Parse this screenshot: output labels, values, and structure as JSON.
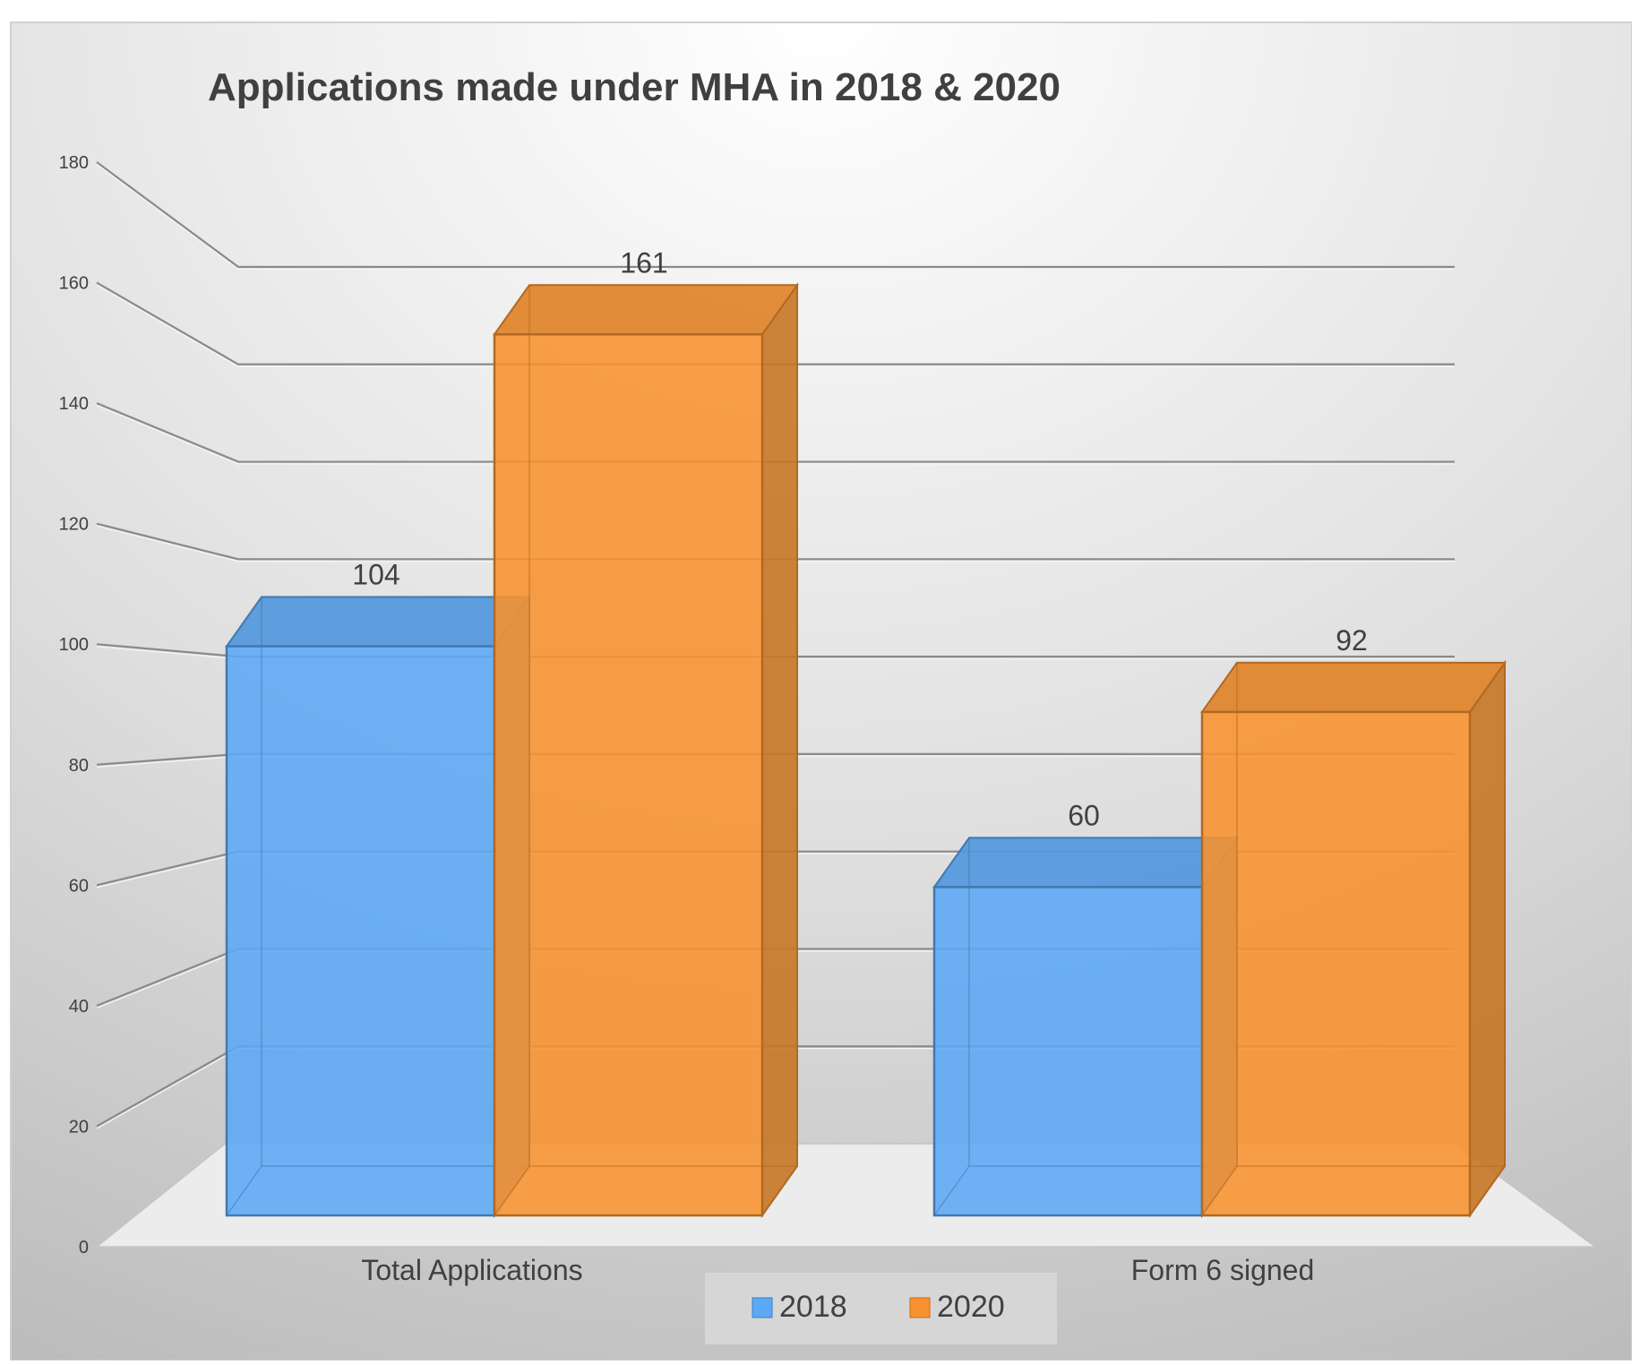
{
  "chart_data": {
    "type": "bar",
    "title": "Applications made under MHA in 2018 & 2020",
    "categories": [
      "Total Applications",
      "Form 6 signed"
    ],
    "series": [
      {
        "name": "2018",
        "values": [
          104,
          60
        ],
        "color": "#5BA8F5"
      },
      {
        "name": "2020",
        "values": [
          161,
          92
        ],
        "color": "#F7922E"
      }
    ],
    "ylim": [
      0,
      180
    ],
    "y_ticks": [
      "0",
      "20",
      "40",
      "60",
      "80",
      "100",
      "120",
      "140",
      "160",
      "180"
    ],
    "data_labels": [
      [
        "104",
        "60"
      ],
      [
        "161",
        "92"
      ]
    ],
    "xlabel": "",
    "ylabel": "",
    "grid": true,
    "legend": "bottom",
    "style": "3d-clustered-column"
  }
}
